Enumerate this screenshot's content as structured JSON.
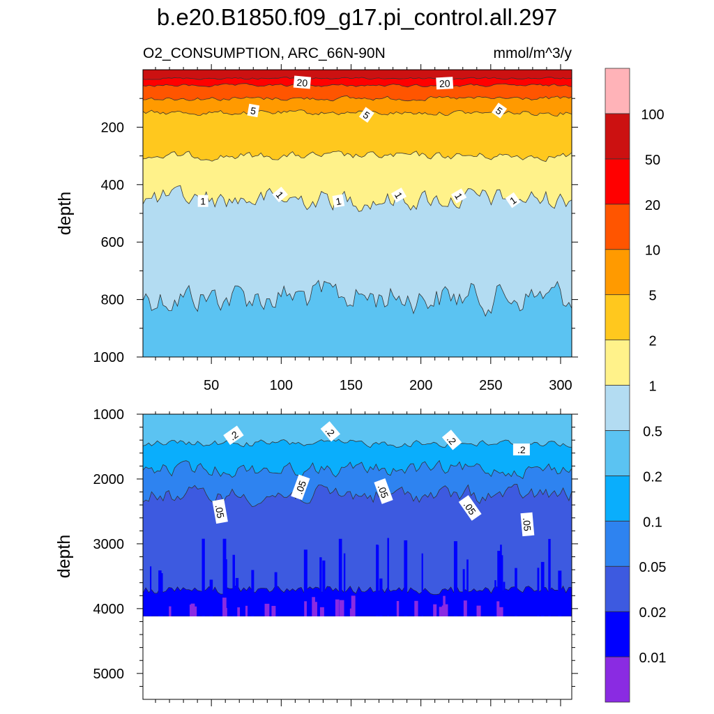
{
  "chart_data": {
    "type": "heatmap",
    "title": "b.e20.B1850.f09_g17.pi_control.all.297",
    "left_subtitle": "O2_CONSUMPTION, ARC_66N-90N",
    "right_subtitle": "mmol/m^3/y",
    "xlim": [
      1,
      308
    ],
    "x_ticks": [
      "50",
      "100",
      "150",
      "200",
      "250",
      "300"
    ],
    "upper_panel": {
      "ylabel": "depth",
      "ylim": [
        0,
        1000
      ],
      "y_ticks": [
        "200",
        "400",
        "600",
        "800",
        "1000"
      ],
      "contour_depths": [
        {
          "level": 50,
          "depth": 30
        },
        {
          "level": 20,
          "depth": 55
        },
        {
          "level": 10,
          "depth": 100
        },
        {
          "level": 5,
          "depth": 150
        },
        {
          "level": 2,
          "depth": 300
        },
        {
          "level": 1,
          "depth": 450
        },
        {
          "level": 0.5,
          "depth": 790
        }
      ],
      "contour_labels": [
        {
          "text": "20",
          "x": 115,
          "depth": 45,
          "rot": 5
        },
        {
          "text": "20",
          "x": 217,
          "depth": 48,
          "rot": -3
        },
        {
          "text": "5",
          "x": 80,
          "depth": 143,
          "rot": 10
        },
        {
          "text": "5",
          "x": 161,
          "depth": 158,
          "rot": 35
        },
        {
          "text": "5",
          "x": 256,
          "depth": 143,
          "rot": 35
        },
        {
          "text": "1",
          "x": 44,
          "depth": 458,
          "rot": 0
        },
        {
          "text": "1",
          "x": 99,
          "depth": 435,
          "rot": 50
        },
        {
          "text": "1",
          "x": 141,
          "depth": 458,
          "rot": -10
        },
        {
          "text": "1",
          "x": 184,
          "depth": 437,
          "rot": 60
        },
        {
          "text": "1",
          "x": 227,
          "depth": 440,
          "rot": 60
        },
        {
          "text": "1",
          "x": 266,
          "depth": 455,
          "rot": -35
        }
      ]
    },
    "lower_panel": {
      "ylabel": "depth",
      "ylim": [
        1000,
        5400
      ],
      "y_ticks": [
        "1000",
        "2000",
        "3000",
        "4000",
        "5000"
      ],
      "max_depth": 4120,
      "contour_depths": [
        {
          "level": 0.2,
          "depth": 1450
        },
        {
          "level": 0.1,
          "depth": 1850
        },
        {
          "level": 0.05,
          "depth": 2250
        }
      ],
      "contour_labels": [
        {
          "text": ".2",
          "x": 66,
          "depth": 1330,
          "rot": -35
        },
        {
          "text": ".2",
          "x": 135,
          "depth": 1270,
          "rot": 50
        },
        {
          "text": ".2",
          "x": 222,
          "depth": 1400,
          "rot": 50
        },
        {
          "text": ".2",
          "x": 272,
          "depth": 1550,
          "rot": 0
        },
        {
          "text": ".05",
          "x": 56,
          "depth": 2500,
          "rot": 80
        },
        {
          "text": ".05",
          "x": 114,
          "depth": 2130,
          "rot": -70
        },
        {
          "text": ".05",
          "x": 173,
          "depth": 2190,
          "rot": 70
        },
        {
          "text": ".05",
          "x": 235,
          "depth": 2450,
          "rot": 55
        },
        {
          "text": ".05",
          "x": 276,
          "depth": 2700,
          "rot": 85
        }
      ]
    },
    "colorbar": {
      "labels": [
        "0.01",
        "0.02",
        "0.05",
        "0.1",
        "0.2",
        "0.5",
        "1",
        "2",
        "5",
        "10",
        "20",
        "50",
        "100"
      ],
      "colors": [
        "#8a2be2",
        "#0000ff",
        "#3d5ae0",
        "#2e83f0",
        "#0aaefc",
        "#5bc3f2",
        "#b3dcf2",
        "#fff28a",
        "#ffc81e",
        "#ff9a00",
        "#ff5500",
        "#ff0000",
        "#cc1111",
        "#ffb3b8"
      ]
    }
  }
}
